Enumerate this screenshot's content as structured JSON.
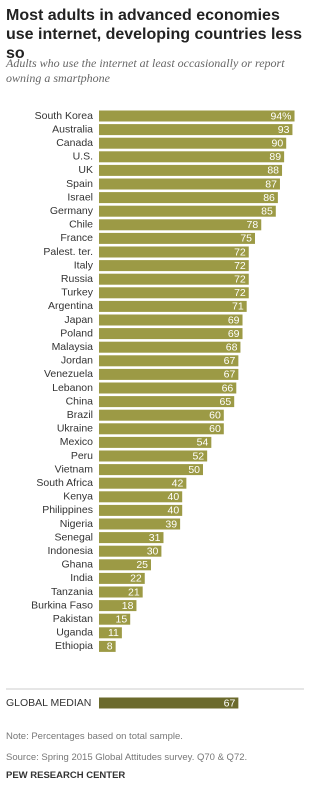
{
  "chart_data": {
    "type": "bar",
    "title": "Most adults in advanced economies use internet, developing countries less so",
    "subtitle": "Adults who use the internet at least occasionally or report owning a smartphone",
    "categories": [
      "South Korea",
      "Australia",
      "Canada",
      "U.S.",
      "UK",
      "Spain",
      "Israel",
      "Germany",
      "Chile",
      "France",
      "Palest. ter.",
      "Italy",
      "Russia",
      "Turkey",
      "Argentina",
      "Japan",
      "Poland",
      "Malaysia",
      "Jordan",
      "Venezuela",
      "Lebanon",
      "China",
      "Brazil",
      "Ukraine",
      "Mexico",
      "Peru",
      "Vietnam",
      "South Africa",
      "Kenya",
      "Philippines",
      "Nigeria",
      "Senegal",
      "Indonesia",
      "Ghana",
      "India",
      "Tanzania",
      "Burkina Faso",
      "Pakistan",
      "Uganda",
      "Ethiopia"
    ],
    "values": [
      94,
      93,
      90,
      89,
      88,
      87,
      86,
      85,
      78,
      75,
      72,
      72,
      72,
      72,
      71,
      69,
      69,
      68,
      67,
      67,
      66,
      65,
      60,
      60,
      54,
      52,
      50,
      42,
      40,
      40,
      39,
      31,
      30,
      25,
      22,
      21,
      18,
      15,
      11,
      8
    ],
    "value_labels": [
      "94%",
      "93",
      "90",
      "89",
      "88",
      "87",
      "86",
      "85",
      "78",
      "75",
      "72",
      "72",
      "72",
      "72",
      "71",
      "69",
      "69",
      "68",
      "67",
      "67",
      "66",
      "65",
      "60",
      "60",
      "54",
      "52",
      "50",
      "42",
      "40",
      "40",
      "39",
      "31",
      "30",
      "25",
      "22",
      "21",
      "18",
      "15",
      "11",
      "8"
    ],
    "color": "#9c9a45",
    "median": {
      "label": "GLOBAL MEDIAN",
      "value": 67,
      "color": "#6b6a2c"
    },
    "note": "Note: Percentages based on total sample.",
    "source": "Source: Spring 2015 Global Attitudes survey. Q70 & Q72.",
    "org": "PEW RESEARCH CENTER"
  }
}
